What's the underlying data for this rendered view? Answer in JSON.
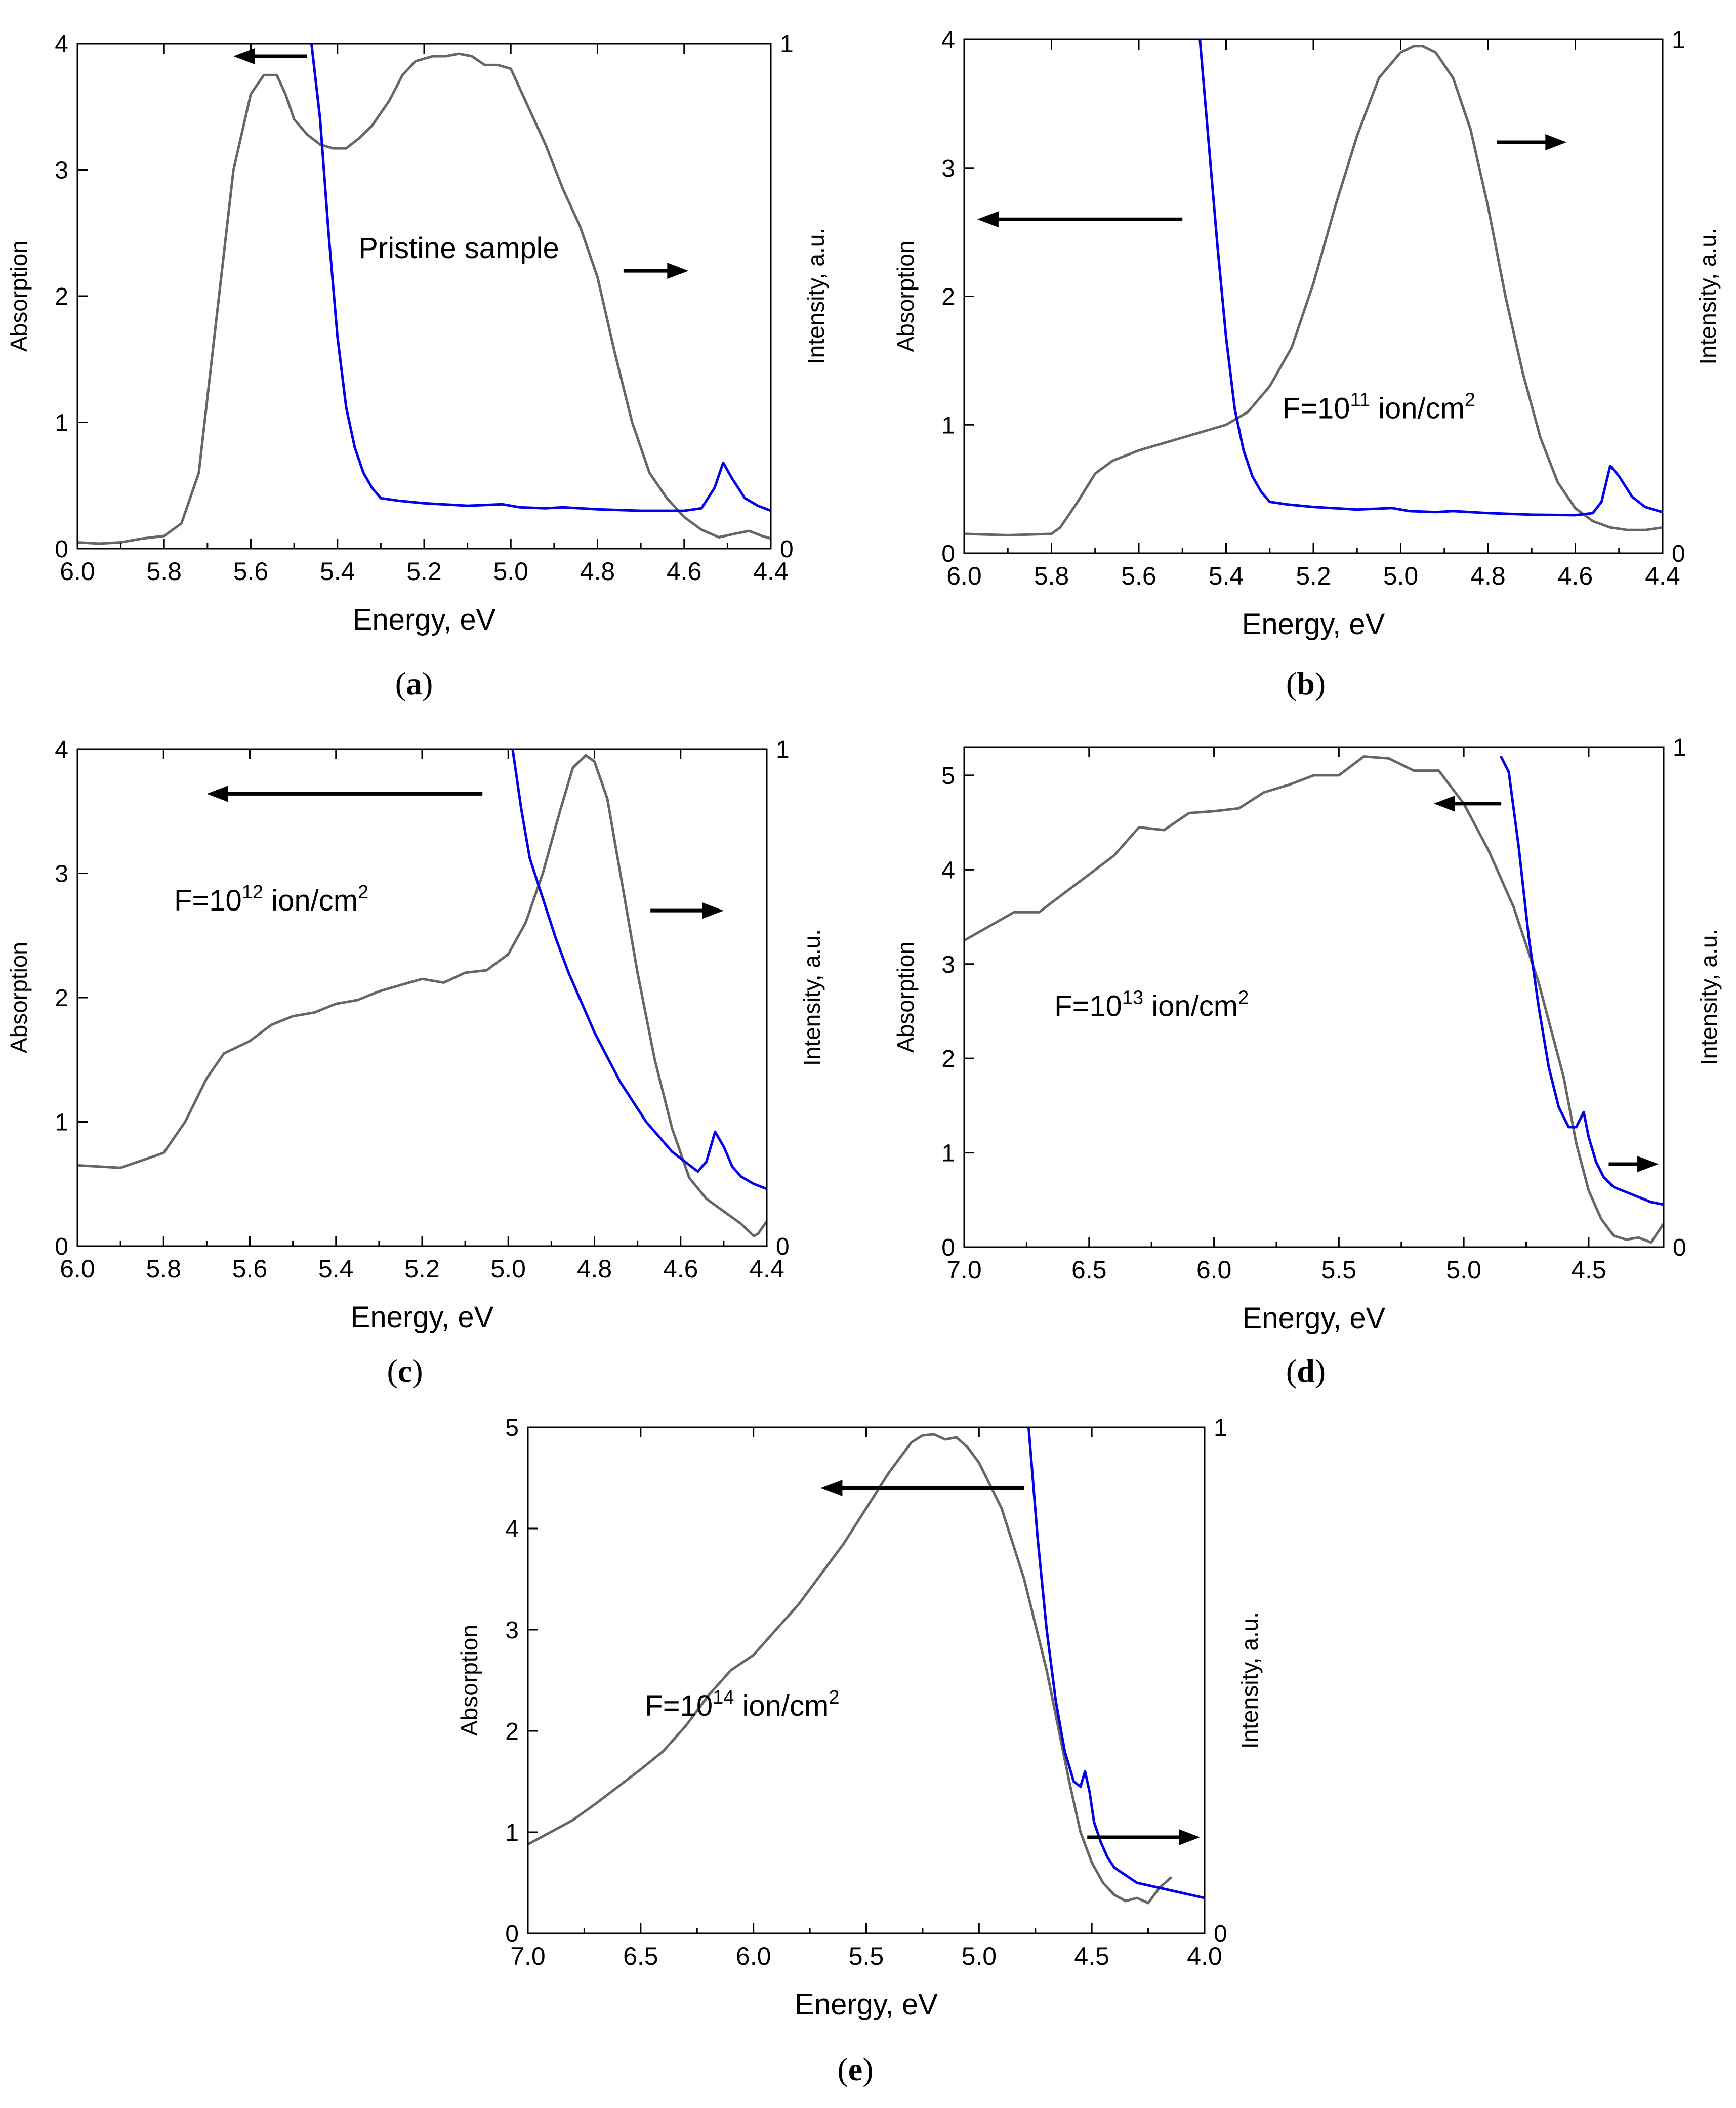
{
  "colors": {
    "absorption": "#666666",
    "intensity": "#0000ee",
    "axis": "#000000",
    "arrow": "#000000"
  },
  "chart_data": [
    {
      "type": "line",
      "panel": "a",
      "panel_label": "a",
      "xlabel": "Energy, eV",
      "ylabel": "Absorption",
      "y2label": "Intensity, a.u.",
      "xlim": [
        6.0,
        4.4
      ],
      "ylim": [
        0,
        4
      ],
      "y2lim": [
        0,
        1
      ],
      "xticks": [
        "6.0",
        "5.8",
        "5.6",
        "5.4",
        "5.2",
        "5.0",
        "4.8",
        "4.6",
        "4.4"
      ],
      "yticks": [
        "0",
        "1",
        "2",
        "3",
        "4"
      ],
      "y2ticks": [
        "0",
        "1"
      ],
      "annotation": {
        "text": "Pristine sample",
        "sup": "",
        "suffix": "",
        "x": 5.12,
        "y": 2.3
      },
      "arrows": [
        {
          "from": [
            5.47,
            3.9
          ],
          "to": [
            5.64,
            3.9
          ]
        },
        {
          "from": [
            4.74,
            2.2
          ],
          "to": [
            4.59,
            2.2
          ]
        }
      ],
      "series": [
        {
          "name": "Absorption",
          "axis": "left",
          "x": [
            6.0,
            5.95,
            5.9,
            5.85,
            5.8,
            5.76,
            5.72,
            5.68,
            5.64,
            5.6,
            5.57,
            5.54,
            5.52,
            5.5,
            5.47,
            5.44,
            5.41,
            5.38,
            5.35,
            5.32,
            5.28,
            5.25,
            5.22,
            5.18,
            5.15,
            5.12,
            5.09,
            5.06,
            5.03,
            5.0,
            4.96,
            4.92,
            4.88,
            4.84,
            4.8,
            4.76,
            4.72,
            4.68,
            4.64,
            4.6,
            4.56,
            4.52,
            4.48,
            4.45,
            4.42,
            4.4
          ],
          "values": [
            0.05,
            0.04,
            0.05,
            0.08,
            0.1,
            0.2,
            0.6,
            1.8,
            3.0,
            3.6,
            3.75,
            3.75,
            3.6,
            3.4,
            3.28,
            3.2,
            3.17,
            3.17,
            3.25,
            3.35,
            3.55,
            3.75,
            3.86,
            3.9,
            3.9,
            3.92,
            3.9,
            3.83,
            3.83,
            3.8,
            3.5,
            3.2,
            2.85,
            2.55,
            2.15,
            1.55,
            1.0,
            0.6,
            0.4,
            0.25,
            0.15,
            0.09,
            0.12,
            0.14,
            0.1,
            0.08
          ]
        },
        {
          "name": "Intensity",
          "axis": "right",
          "x": [
            5.46,
            5.44,
            5.42,
            5.4,
            5.38,
            5.36,
            5.34,
            5.32,
            5.3,
            5.26,
            5.2,
            5.1,
            5.02,
            4.98,
            4.92,
            4.88,
            4.8,
            4.7,
            4.6,
            4.56,
            4.53,
            4.51,
            4.49,
            4.46,
            4.43,
            4.4
          ],
          "values": [
            1.0,
            0.85,
            0.62,
            0.42,
            0.28,
            0.2,
            0.15,
            0.12,
            0.1,
            0.095,
            0.09,
            0.085,
            0.088,
            0.082,
            0.08,
            0.082,
            0.078,
            0.075,
            0.075,
            0.08,
            0.12,
            0.17,
            0.14,
            0.1,
            0.085,
            0.075
          ]
        }
      ]
    },
    {
      "type": "line",
      "panel": "b",
      "panel_label": "b",
      "xlabel": "Energy, eV",
      "ylabel": "Absorption",
      "y2label": "Intensity, a.u.",
      "xlim": [
        6.0,
        4.4
      ],
      "ylim": [
        0,
        4
      ],
      "y2lim": [
        0,
        1
      ],
      "xticks": [
        "6.0",
        "5.8",
        "5.6",
        "5.4",
        "5.2",
        "5.0",
        "4.8",
        "4.6",
        "4.4"
      ],
      "yticks": [
        "0",
        "1",
        "2",
        "3",
        "4"
      ],
      "y2ticks": [
        "0",
        "1"
      ],
      "annotation": {
        "text": "F=10",
        "sup": "11",
        "suffix": " ion/cm",
        "sup2": "2",
        "x": 5.05,
        "y": 1.05
      },
      "arrows": [
        {
          "from": [
            5.5,
            2.6
          ],
          "to": [
            5.97,
            2.6
          ]
        },
        {
          "from": [
            4.78,
            3.2
          ],
          "to": [
            4.62,
            3.2
          ]
        }
      ],
      "series": [
        {
          "name": "Absorption",
          "axis": "left",
          "x": [
            6.0,
            5.9,
            5.8,
            5.78,
            5.74,
            5.7,
            5.66,
            5.6,
            5.5,
            5.4,
            5.35,
            5.3,
            5.25,
            5.2,
            5.15,
            5.1,
            5.05,
            5.0,
            4.97,
            4.95,
            4.92,
            4.88,
            4.84,
            4.8,
            4.76,
            4.72,
            4.68,
            4.64,
            4.6,
            4.56,
            4.52,
            4.48,
            4.44,
            4.4
          ],
          "values": [
            0.15,
            0.14,
            0.15,
            0.2,
            0.4,
            0.62,
            0.72,
            0.8,
            0.9,
            1.0,
            1.1,
            1.3,
            1.6,
            2.1,
            2.7,
            3.25,
            3.7,
            3.9,
            3.95,
            3.95,
            3.9,
            3.7,
            3.3,
            2.7,
            2.0,
            1.4,
            0.9,
            0.55,
            0.35,
            0.25,
            0.2,
            0.18,
            0.18,
            0.2
          ]
        },
        {
          "name": "Intensity",
          "axis": "right",
          "x": [
            5.46,
            5.44,
            5.42,
            5.4,
            5.38,
            5.36,
            5.34,
            5.32,
            5.3,
            5.26,
            5.2,
            5.1,
            5.02,
            4.98,
            4.92,
            4.88,
            4.8,
            4.7,
            4.6,
            4.56,
            4.54,
            4.52,
            4.5,
            4.47,
            4.44,
            4.4
          ],
          "values": [
            1.0,
            0.8,
            0.6,
            0.42,
            0.28,
            0.2,
            0.15,
            0.12,
            0.1,
            0.095,
            0.09,
            0.085,
            0.088,
            0.082,
            0.08,
            0.082,
            0.078,
            0.075,
            0.074,
            0.078,
            0.1,
            0.17,
            0.15,
            0.11,
            0.09,
            0.08
          ]
        }
      ]
    },
    {
      "type": "line",
      "panel": "c",
      "panel_label": "c",
      "xlabel": "Energy, eV",
      "ylabel": "Absorption",
      "y2label": "Intensity, a.u.",
      "xlim": [
        6.0,
        4.4
      ],
      "ylim": [
        0,
        4
      ],
      "y2lim": [
        0,
        1
      ],
      "xticks": [
        "6.0",
        "5.8",
        "5.6",
        "5.4",
        "5.2",
        "5.0",
        "4.8",
        "4.6",
        "4.4"
      ],
      "yticks": [
        "0",
        "1",
        "2",
        "3",
        "4"
      ],
      "y2ticks": [
        "0",
        "1"
      ],
      "annotation": {
        "text": "F=10",
        "sup": "12",
        "suffix": " ion/cm",
        "sup2": "2",
        "x": 5.55,
        "y": 2.7
      },
      "arrows": [
        {
          "from": [
            5.06,
            3.64
          ],
          "to": [
            5.7,
            3.64
          ]
        },
        {
          "from": [
            4.67,
            2.7
          ],
          "to": [
            4.5,
            2.7
          ]
        }
      ],
      "series": [
        {
          "name": "Absorption",
          "axis": "left",
          "x": [
            6.0,
            5.9,
            5.8,
            5.75,
            5.7,
            5.66,
            5.6,
            5.55,
            5.5,
            5.45,
            5.4,
            5.35,
            5.3,
            5.25,
            5.2,
            5.15,
            5.1,
            5.05,
            5.0,
            4.96,
            4.92,
            4.88,
            4.85,
            4.82,
            4.8,
            4.77,
            4.74,
            4.7,
            4.66,
            4.62,
            4.58,
            4.54,
            4.5,
            4.46,
            4.43,
            4.42,
            4.4
          ],
          "values": [
            0.65,
            0.63,
            0.75,
            1.0,
            1.35,
            1.55,
            1.65,
            1.78,
            1.85,
            1.88,
            1.95,
            1.98,
            2.05,
            2.1,
            2.15,
            2.12,
            2.2,
            2.22,
            2.35,
            2.6,
            3.0,
            3.5,
            3.85,
            3.95,
            3.9,
            3.6,
            3.0,
            2.2,
            1.5,
            0.95,
            0.55,
            0.38,
            0.28,
            0.18,
            0.08,
            0.1,
            0.2
          ]
        },
        {
          "name": "Intensity",
          "axis": "right",
          "x": [
            4.99,
            4.97,
            4.95,
            4.92,
            4.89,
            4.86,
            4.83,
            4.8,
            4.77,
            4.74,
            4.71,
            4.68,
            4.65,
            4.62,
            4.59,
            4.56,
            4.54,
            4.52,
            4.5,
            4.48,
            4.46,
            4.43,
            4.4
          ],
          "values": [
            1.0,
            0.88,
            0.78,
            0.7,
            0.62,
            0.55,
            0.49,
            0.43,
            0.38,
            0.33,
            0.29,
            0.25,
            0.22,
            0.19,
            0.17,
            0.15,
            0.17,
            0.23,
            0.2,
            0.16,
            0.14,
            0.125,
            0.115
          ]
        }
      ]
    },
    {
      "type": "line",
      "panel": "d",
      "panel_label": "d",
      "xlabel": "Energy, eV",
      "ylabel": "Absorption",
      "y2label": "Intensity, a.u.",
      "xlim": [
        7.0,
        4.2
      ],
      "ylim": [
        0,
        5.3
      ],
      "y2lim": [
        0,
        1
      ],
      "xticks": [
        "7.0",
        "6.5",
        "6.0",
        "5.5",
        "5.0",
        "4.5"
      ],
      "yticks": [
        "0",
        "1",
        "2",
        "3",
        "4",
        "5"
      ],
      "y2ticks": [
        "0",
        "1"
      ],
      "annotation": {
        "text": "F=10",
        "sup": "13",
        "suffix": " ion/cm",
        "sup2": "2",
        "x": 6.25,
        "y": 2.45
      },
      "arrows": [
        {
          "from": [
            4.85,
            4.7
          ],
          "to": [
            5.12,
            4.7
          ]
        },
        {
          "from": [
            4.42,
            0.88
          ],
          "to": [
            4.22,
            0.88
          ]
        }
      ],
      "series": [
        {
          "name": "Absorption",
          "axis": "left",
          "x": [
            7.0,
            6.9,
            6.8,
            6.7,
            6.6,
            6.5,
            6.4,
            6.3,
            6.2,
            6.1,
            6.0,
            5.9,
            5.8,
            5.7,
            5.6,
            5.5,
            5.4,
            5.3,
            5.2,
            5.1,
            5.0,
            4.9,
            4.8,
            4.7,
            4.6,
            4.55,
            4.5,
            4.45,
            4.4,
            4.35,
            4.3,
            4.25,
            4.2
          ],
          "values": [
            3.25,
            3.4,
            3.55,
            3.55,
            3.75,
            3.95,
            4.15,
            4.45,
            4.42,
            4.6,
            4.62,
            4.65,
            4.82,
            4.9,
            5.0,
            5.0,
            5.2,
            5.18,
            5.05,
            5.05,
            4.7,
            4.2,
            3.6,
            2.8,
            1.8,
            1.1,
            0.6,
            0.3,
            0.12,
            0.08,
            0.1,
            0.05,
            0.25
          ]
        },
        {
          "name": "Intensity",
          "axis": "right",
          "x": [
            4.85,
            4.82,
            4.78,
            4.74,
            4.7,
            4.66,
            4.62,
            4.58,
            4.55,
            4.52,
            4.5,
            4.47,
            4.44,
            4.4,
            4.35,
            4.3,
            4.25,
            4.2
          ],
          "values": [
            0.98,
            0.95,
            0.8,
            0.62,
            0.48,
            0.36,
            0.28,
            0.24,
            0.24,
            0.27,
            0.22,
            0.17,
            0.14,
            0.12,
            0.11,
            0.1,
            0.09,
            0.085
          ]
        }
      ]
    },
    {
      "type": "line",
      "panel": "e",
      "panel_label": "e",
      "xlabel": "Energy, eV",
      "ylabel": "Absorption",
      "y2label": "Intensity, a.u.",
      "xlim": [
        7.0,
        4.0
      ],
      "ylim": [
        0,
        5
      ],
      "y2lim": [
        0,
        1
      ],
      "xticks": [
        "7.0",
        "6.5",
        "6.0",
        "5.5",
        "5.0",
        "4.5",
        "4.0"
      ],
      "yticks": [
        "0",
        "1",
        "2",
        "3",
        "4",
        "5"
      ],
      "y2ticks": [
        "0",
        "1"
      ],
      "annotation": {
        "text": "F=10",
        "sup": "14",
        "suffix": " ion/cm",
        "sup2": "2",
        "x": 6.05,
        "y": 2.15
      },
      "arrows": [
        {
          "from": [
            4.8,
            4.4
          ],
          "to": [
            5.7,
            4.4
          ]
        },
        {
          "from": [
            4.52,
            0.95
          ],
          "to": [
            4.02,
            0.95
          ]
        }
      ],
      "series": [
        {
          "name": "Absorption",
          "axis": "left",
          "x": [
            7.0,
            6.9,
            6.8,
            6.7,
            6.6,
            6.5,
            6.4,
            6.3,
            6.2,
            6.1,
            6.0,
            5.9,
            5.8,
            5.7,
            5.6,
            5.5,
            5.4,
            5.3,
            5.25,
            5.2,
            5.15,
            5.1,
            5.05,
            5.0,
            4.9,
            4.8,
            4.7,
            4.6,
            4.55,
            4.5,
            4.45,
            4.4,
            4.35,
            4.3,
            4.25,
            4.2,
            4.15
          ],
          "values": [
            0.88,
            1.0,
            1.12,
            1.28,
            1.45,
            1.62,
            1.8,
            2.05,
            2.35,
            2.6,
            2.75,
            3.0,
            3.25,
            3.55,
            3.85,
            4.2,
            4.55,
            4.85,
            4.92,
            4.93,
            4.88,
            4.9,
            4.8,
            4.65,
            4.2,
            3.5,
            2.6,
            1.5,
            1.0,
            0.7,
            0.5,
            0.38,
            0.32,
            0.35,
            0.3,
            0.45,
            0.55
          ]
        },
        {
          "name": "Intensity",
          "axis": "right",
          "x": [
            4.78,
            4.74,
            4.7,
            4.66,
            4.62,
            4.58,
            4.55,
            4.53,
            4.51,
            4.49,
            4.46,
            4.43,
            4.4,
            4.35,
            4.3,
            4.25,
            4.2,
            4.1,
            4.0
          ],
          "values": [
            1.0,
            0.78,
            0.6,
            0.46,
            0.36,
            0.3,
            0.29,
            0.32,
            0.28,
            0.22,
            0.18,
            0.15,
            0.13,
            0.115,
            0.1,
            0.095,
            0.09,
            0.08,
            0.07
          ]
        }
      ]
    }
  ]
}
